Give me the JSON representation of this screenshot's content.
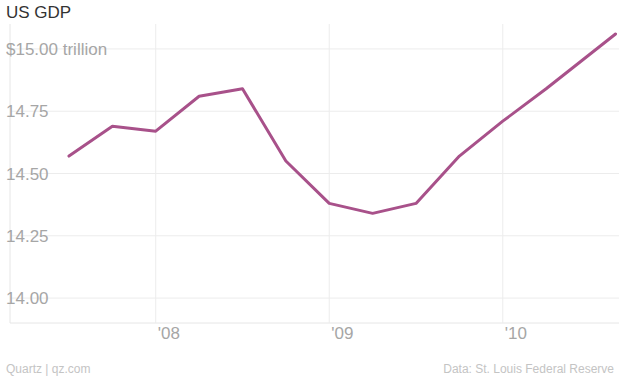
{
  "chart_data": {
    "type": "line",
    "title": "US GDP",
    "x": [
      2007.5,
      2007.75,
      2008.0,
      2008.25,
      2008.5,
      2008.75,
      2009.0,
      2009.25,
      2009.5,
      2009.75,
      2010.0,
      2010.25,
      2010.65
    ],
    "series": [
      {
        "name": "US GDP",
        "color": "#a8518a",
        "values": [
          14.57,
          14.69,
          14.67,
          14.81,
          14.84,
          14.55,
          14.38,
          14.34,
          14.38,
          14.57,
          14.71,
          14.84,
          15.06
        ]
      }
    ],
    "xlim": [
      2007.16,
      2010.67
    ],
    "xticks": [
      {
        "value": 2008,
        "label": "'08"
      },
      {
        "value": 2009,
        "label": "'09"
      },
      {
        "value": 2010,
        "label": "'10"
      }
    ],
    "ylim": [
      13.9,
      15.1
    ],
    "yticks": [
      {
        "value": 14,
        "label": "14.00"
      },
      {
        "value": 14.25,
        "label": "14.25"
      },
      {
        "value": 14.5,
        "label": "14.50"
      },
      {
        "value": 14.75,
        "label": "14.75"
      },
      {
        "value": 15,
        "label": "$15.00 trillion"
      }
    ],
    "grid": true,
    "credit": "Quartz | qz.com",
    "source": "Data: St. Louis Federal Reserve"
  }
}
